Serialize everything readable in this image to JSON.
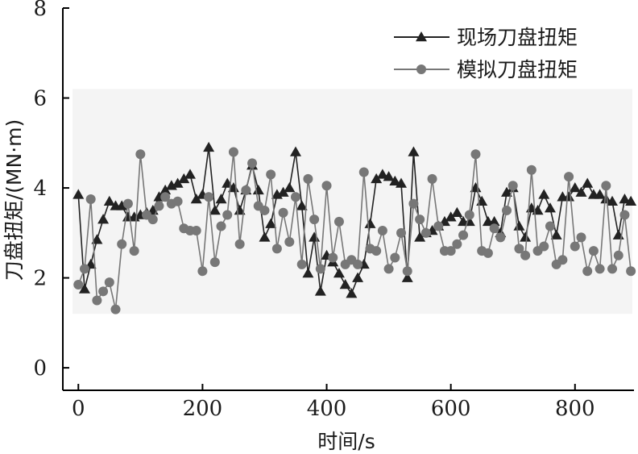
{
  "chart_data": {
    "type": "line",
    "xlabel": "时间/s",
    "ylabel": "刀盘扭矩/(MN·m)",
    "xlim": [
      -25,
      895
    ],
    "ylim": [
      -0.5,
      8
    ],
    "xticks": [
      0,
      200,
      400,
      600,
      800
    ],
    "yticks": [
      0,
      2,
      4,
      6,
      8
    ],
    "legend_position": "top-right",
    "grid": false,
    "series": [
      {
        "name": "现场刀盘扭矩",
        "marker": "triangle",
        "color": "#222222",
        "x": [
          0,
          10,
          20,
          30,
          40,
          50,
          60,
          70,
          80,
          90,
          100,
          110,
          120,
          130,
          140,
          150,
          160,
          170,
          180,
          190,
          200,
          210,
          220,
          230,
          240,
          250,
          260,
          270,
          280,
          290,
          300,
          310,
          320,
          330,
          340,
          350,
          360,
          370,
          380,
          390,
          400,
          410,
          420,
          430,
          440,
          450,
          460,
          470,
          480,
          490,
          500,
          510,
          520,
          530,
          540,
          550,
          560,
          570,
          580,
          590,
          600,
          610,
          620,
          630,
          640,
          650,
          660,
          670,
          680,
          690,
          700,
          710,
          720,
          730,
          740,
          750,
          760,
          770,
          780,
          790,
          800,
          810,
          820,
          830,
          840,
          850,
          860,
          870,
          880,
          890
        ],
        "y": [
          3.85,
          1.75,
          2.3,
          2.85,
          3.3,
          3.7,
          3.6,
          3.6,
          3.35,
          3.35,
          3.4,
          3.45,
          3.5,
          3.8,
          3.95,
          4.05,
          4.1,
          4.2,
          4.3,
          3.75,
          3.85,
          4.9,
          3.5,
          3.75,
          4.1,
          4.0,
          3.5,
          3.95,
          4.5,
          3.95,
          2.9,
          3.2,
          3.85,
          3.9,
          4.0,
          4.8,
          3.6,
          2.1,
          2.9,
          1.7,
          2.5,
          2.35,
          2.1,
          1.85,
          1.65,
          2.0,
          2.3,
          3.2,
          4.2,
          4.3,
          4.25,
          4.15,
          4.1,
          2.0,
          4.8,
          2.9,
          3.0,
          3.05,
          3.15,
          3.25,
          3.35,
          3.45,
          3.25,
          3.25,
          4.0,
          3.7,
          3.25,
          3.25,
          3.0,
          3.9,
          4.0,
          3.15,
          2.9,
          3.55,
          3.5,
          3.85,
          3.55,
          2.95,
          3.8,
          3.8,
          4.0,
          3.9,
          4.1,
          3.85,
          3.85,
          3.75,
          3.7,
          2.95,
          3.75,
          3.7
        ]
      },
      {
        "name": "模拟刀盘扭矩",
        "marker": "circle",
        "color": "#777777",
        "x": [
          0,
          10,
          20,
          30,
          40,
          50,
          60,
          70,
          80,
          90,
          100,
          110,
          120,
          130,
          140,
          150,
          160,
          170,
          180,
          190,
          200,
          210,
          220,
          230,
          240,
          250,
          260,
          270,
          280,
          290,
          300,
          310,
          320,
          330,
          340,
          350,
          360,
          370,
          380,
          390,
          400,
          410,
          420,
          430,
          440,
          450,
          460,
          470,
          480,
          490,
          500,
          510,
          520,
          530,
          540,
          550,
          560,
          570,
          580,
          590,
          600,
          610,
          620,
          630,
          640,
          650,
          660,
          670,
          680,
          690,
          700,
          710,
          720,
          730,
          740,
          750,
          760,
          770,
          780,
          790,
          800,
          810,
          820,
          830,
          840,
          850,
          860,
          870,
          880,
          890
        ],
        "y": [
          1.85,
          2.2,
          3.75,
          1.5,
          1.7,
          1.9,
          1.3,
          2.75,
          3.65,
          2.6,
          4.75,
          3.4,
          3.3,
          3.6,
          3.8,
          3.65,
          3.7,
          3.1,
          3.05,
          3.05,
          2.15,
          3.8,
          2.35,
          3.15,
          3.4,
          4.8,
          2.75,
          3.95,
          4.55,
          3.6,
          3.5,
          4.3,
          2.65,
          3.45,
          2.8,
          3.8,
          2.3,
          4.2,
          3.3,
          2.2,
          4.05,
          2.45,
          3.25,
          2.3,
          2.4,
          2.3,
          4.35,
          2.65,
          2.6,
          3.05,
          2.2,
          2.45,
          3.0,
          2.15,
          3.65,
          3.3,
          3.0,
          4.2,
          3.15,
          2.6,
          2.6,
          2.75,
          2.95,
          3.4,
          4.75,
          2.6,
          2.55,
          3.1,
          2.9,
          3.5,
          4.05,
          2.65,
          2.5,
          4.4,
          2.6,
          2.7,
          3.15,
          2.3,
          2.4,
          4.25,
          2.7,
          2.9,
          2.15,
          2.6,
          2.2,
          4.05,
          2.2,
          2.5,
          3.4,
          2.15
        ]
      }
    ]
  }
}
